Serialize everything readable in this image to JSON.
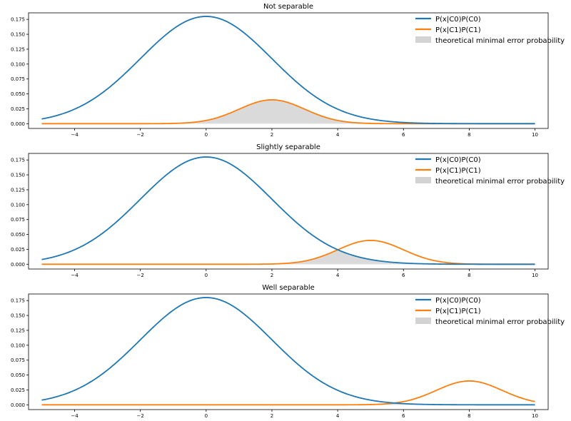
{
  "colors": {
    "c0": "#1f77b4",
    "c1": "#ff7f0e",
    "error_fill": "#d3d3d3",
    "axes": "#000000",
    "background": "#ffffff"
  },
  "chart_data": [
    {
      "type": "line",
      "title": "Not separable",
      "xlim": [
        -5.4,
        10.4
      ],
      "ylim": [
        -0.008,
        0.186
      ],
      "x_ticks": [
        -4,
        -2,
        0,
        2,
        4,
        6,
        8,
        10
      ],
      "y_ticks": [
        0.0,
        0.025,
        0.05,
        0.075,
        0.1,
        0.125,
        0.15,
        0.175
      ],
      "y_tick_labels": [
        "0.000",
        "0.025",
        "0.050",
        "0.075",
        "0.100",
        "0.125",
        "0.150",
        "0.175"
      ],
      "x_range": [
        -5,
        10
      ],
      "series": [
        {
          "name": "P(x|C0)P(C0)",
          "distribution": "normal",
          "mean": 0,
          "std": 2,
          "peak": 0.18,
          "color_key": "c0"
        },
        {
          "name": "P(x|C1)P(C1)",
          "distribution": "normal",
          "mean": 2,
          "std": 1,
          "peak": 0.04,
          "color_key": "c1"
        }
      ],
      "fill": {
        "name": "theoretical minimal error probability",
        "rule": "min of both curves",
        "color_key": "error_fill"
      },
      "legend": [
        "P(x|C0)P(C0)",
        "P(x|C1)P(C1)",
        "theoretical minimal error probability"
      ],
      "legend_position": "top-right"
    },
    {
      "type": "line",
      "title": "Slightly separable",
      "xlim": [
        -5.4,
        10.4
      ],
      "ylim": [
        -0.008,
        0.186
      ],
      "x_ticks": [
        -4,
        -2,
        0,
        2,
        4,
        6,
        8,
        10
      ],
      "y_ticks": [
        0.0,
        0.025,
        0.05,
        0.075,
        0.1,
        0.125,
        0.15,
        0.175
      ],
      "y_tick_labels": [
        "0.000",
        "0.025",
        "0.050",
        "0.075",
        "0.100",
        "0.125",
        "0.150",
        "0.175"
      ],
      "x_range": [
        -5,
        10
      ],
      "series": [
        {
          "name": "P(x|C0)P(C0)",
          "distribution": "normal",
          "mean": 0,
          "std": 2,
          "peak": 0.18,
          "color_key": "c0"
        },
        {
          "name": "P(x|C1)P(C1)",
          "distribution": "normal",
          "mean": 5,
          "std": 1,
          "peak": 0.04,
          "color_key": "c1"
        }
      ],
      "fill": {
        "name": "theoretical minimal error probability",
        "rule": "min of both curves",
        "color_key": "error_fill"
      },
      "legend": [
        "P(x|C0)P(C0)",
        "P(x|C1)P(C1)",
        "theoretical minimal error probability"
      ],
      "legend_position": "top-right"
    },
    {
      "type": "line",
      "title": "Well separable",
      "xlim": [
        -5.4,
        10.4
      ],
      "ylim": [
        -0.008,
        0.186
      ],
      "x_ticks": [
        -4,
        -2,
        0,
        2,
        4,
        6,
        8,
        10
      ],
      "y_ticks": [
        0.0,
        0.025,
        0.05,
        0.075,
        0.1,
        0.125,
        0.15,
        0.175
      ],
      "y_tick_labels": [
        "0.000",
        "0.025",
        "0.050",
        "0.075",
        "0.100",
        "0.125",
        "0.150",
        "0.175"
      ],
      "x_range": [
        -5,
        10
      ],
      "series": [
        {
          "name": "P(x|C0)P(C0)",
          "distribution": "normal",
          "mean": 0,
          "std": 2,
          "peak": 0.18,
          "color_key": "c0"
        },
        {
          "name": "P(x|C1)P(C1)",
          "distribution": "normal",
          "mean": 8,
          "std": 1,
          "peak": 0.04,
          "color_key": "c1"
        }
      ],
      "fill": {
        "name": "theoretical minimal error probability",
        "rule": "min of both curves",
        "color_key": "error_fill"
      },
      "legend": [
        "P(x|C0)P(C0)",
        "P(x|C1)P(C1)",
        "theoretical minimal error probability"
      ],
      "legend_position": "top-right"
    }
  ]
}
